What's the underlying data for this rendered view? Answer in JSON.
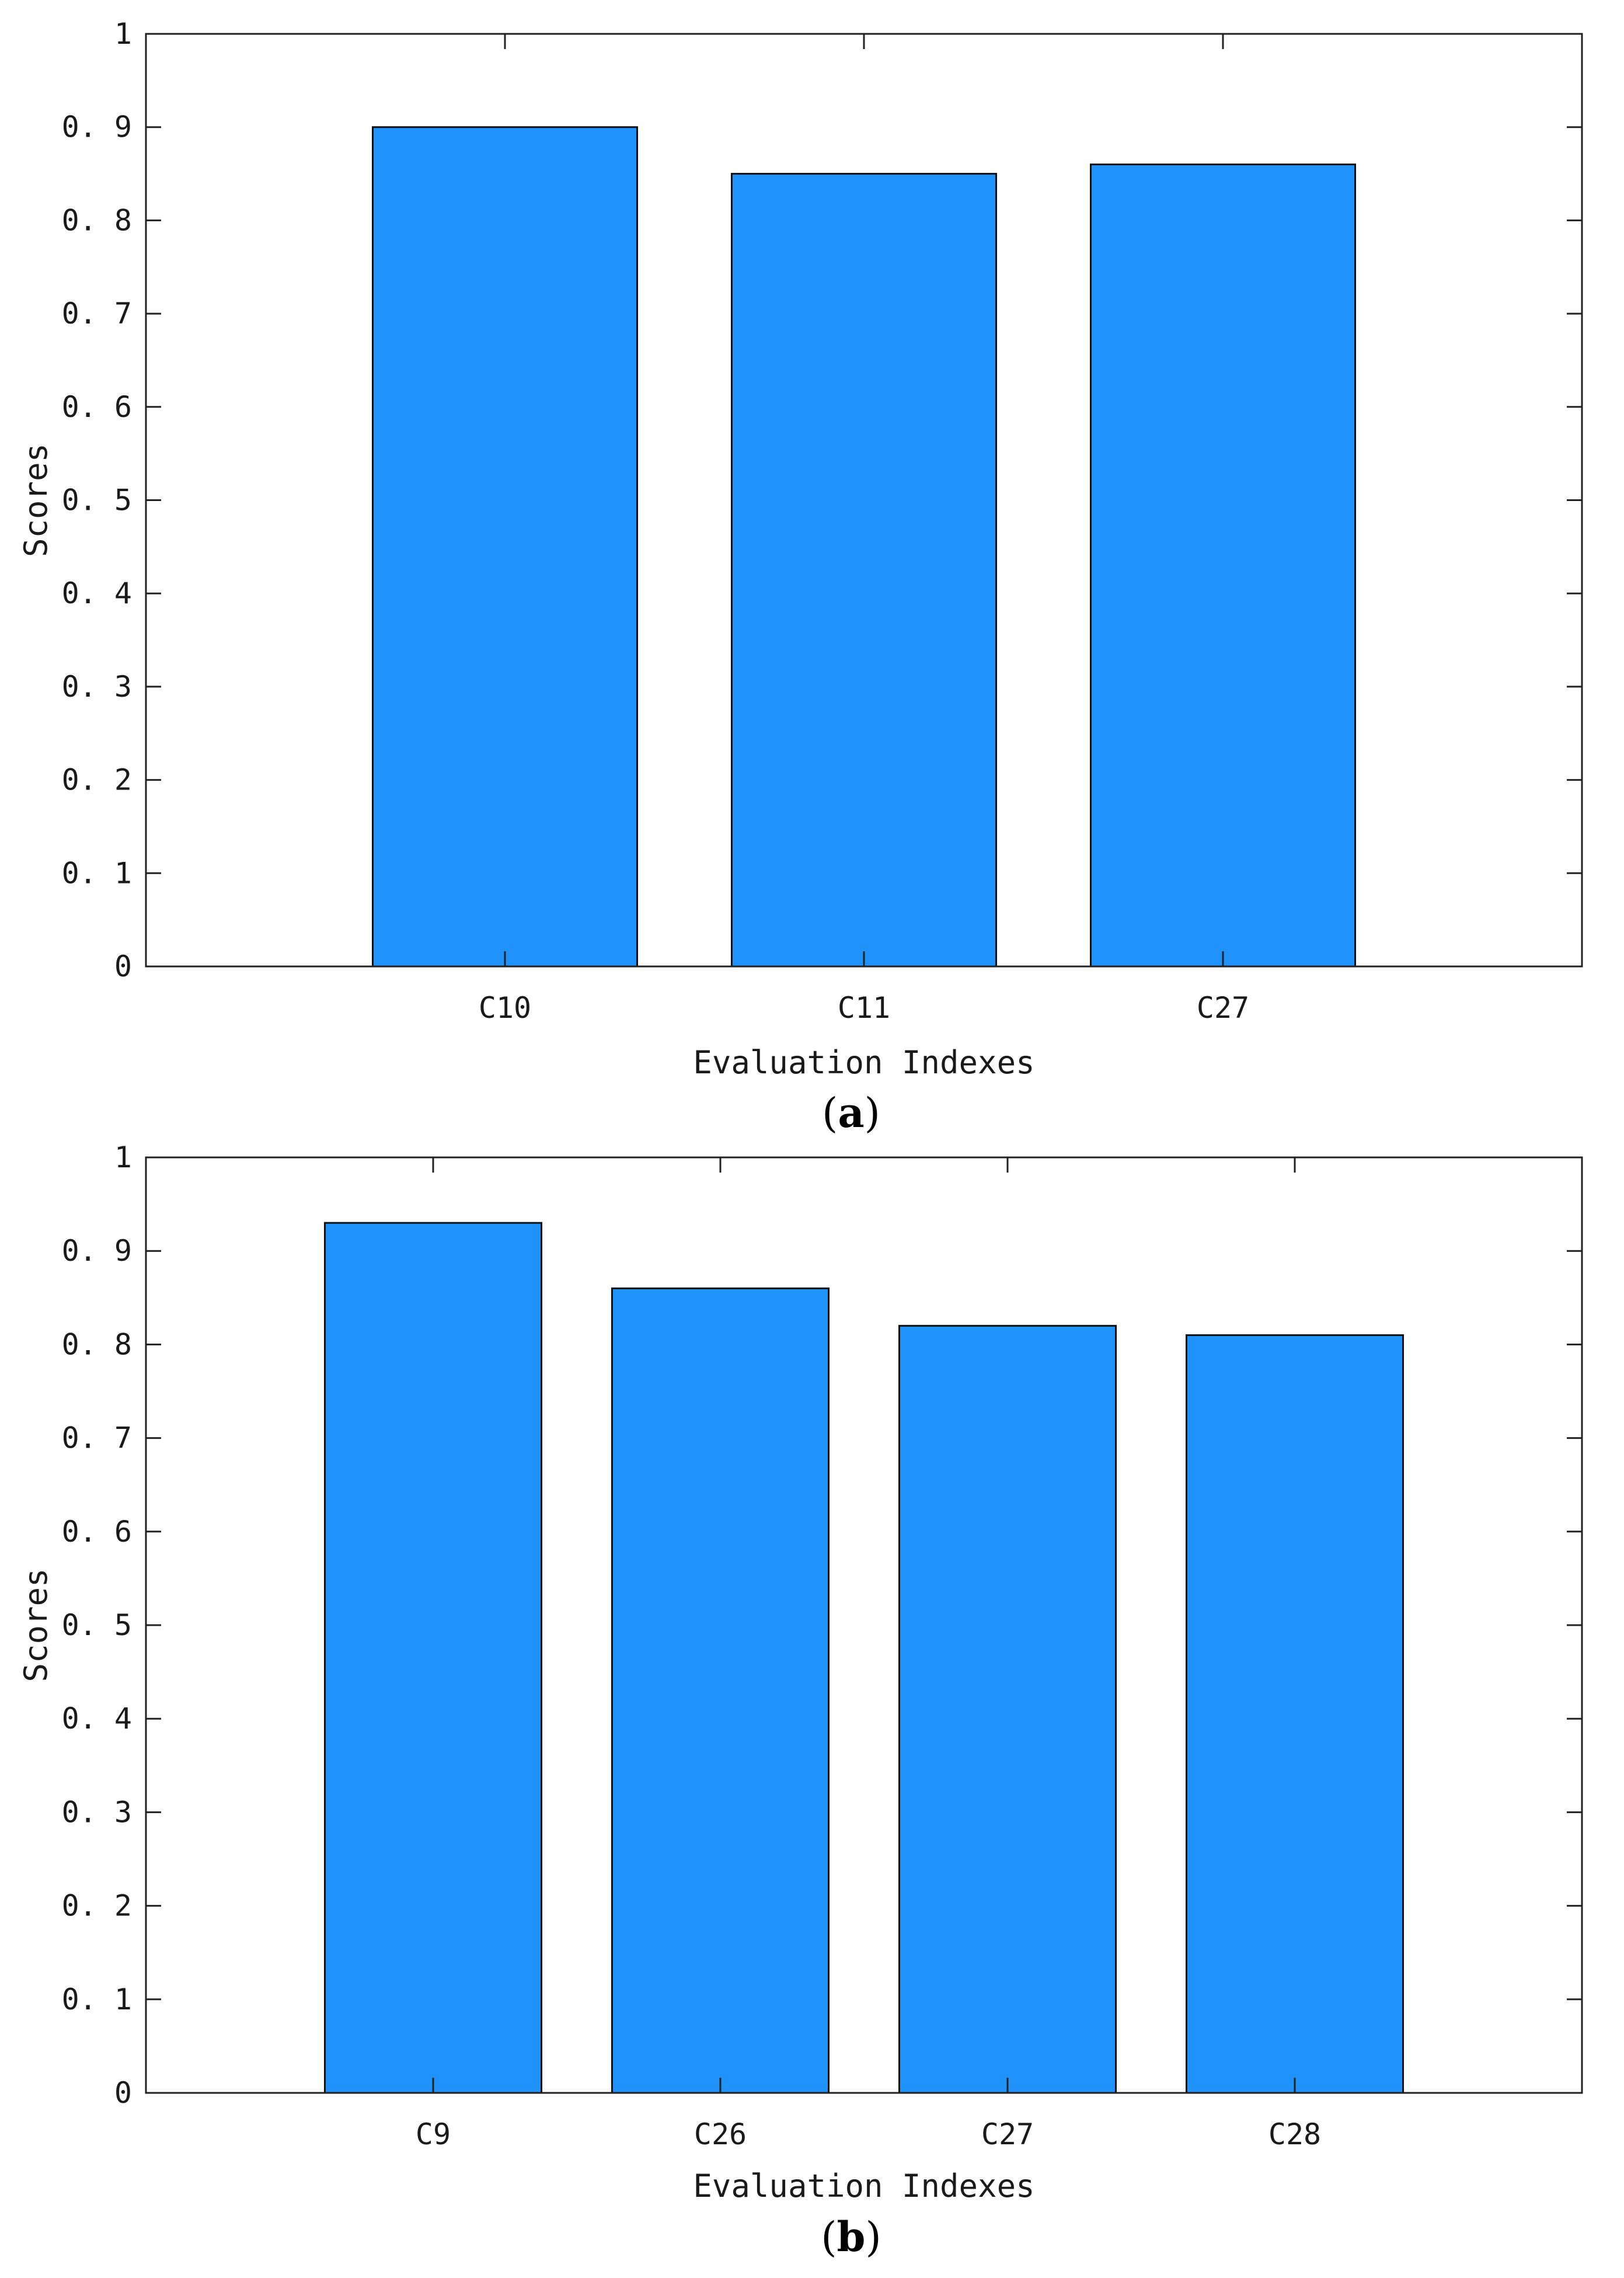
{
  "colors": {
    "bar_fill": "#2093fb",
    "bar_stroke": "#111111",
    "axis": "#222222"
  },
  "chart_data": [
    {
      "panel": "a",
      "type": "bar",
      "categories": [
        "C10",
        "C11",
        "C27"
      ],
      "values": [
        0.9,
        0.85,
        0.86
      ],
      "xlabel": "Evaluation Indexes",
      "ylabel": "Scores",
      "ylim": [
        0,
        1
      ],
      "yticks": [
        "0",
        "0. 1",
        "0. 2",
        "0. 3",
        "0. 4",
        "0. 5",
        "0. 6",
        "0. 7",
        "0. 8",
        "0. 9",
        "1"
      ],
      "xlim": [
        0,
        4
      ],
      "grid": false,
      "caption_open": "(",
      "caption_letter": "a",
      "caption_close": ")"
    },
    {
      "panel": "b",
      "type": "bar",
      "categories": [
        "C9",
        "C26",
        "C27",
        "C28"
      ],
      "values": [
        0.93,
        0.86,
        0.82,
        0.81
      ],
      "xlabel": "Evaluation Indexes",
      "ylabel": "Scores",
      "ylim": [
        0,
        1
      ],
      "yticks": [
        "0",
        "0. 1",
        "0. 2",
        "0. 3",
        "0. 4",
        "0. 5",
        "0. 6",
        "0. 7",
        "0. 8",
        "0. 9",
        "1"
      ],
      "xlim": [
        0,
        5
      ],
      "grid": false,
      "caption_open": "(",
      "caption_letter": "b",
      "caption_close": ")"
    }
  ]
}
